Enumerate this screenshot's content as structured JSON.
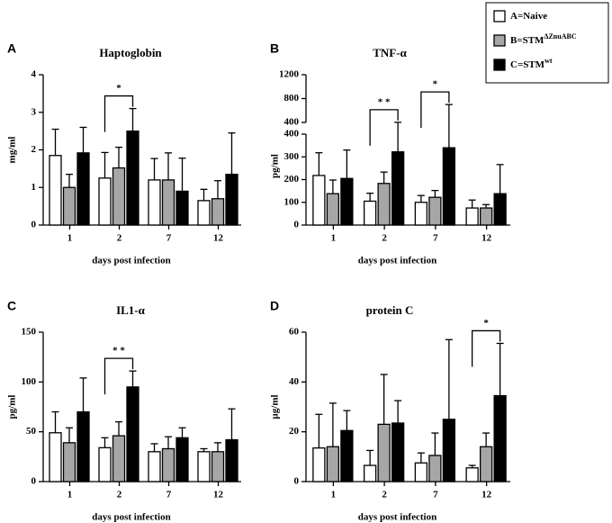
{
  "legend": [
    {
      "name": "A=Naive",
      "sup": "",
      "color": "#ffffff"
    },
    {
      "name": "B=STM",
      "sup": "ΔZnuABC",
      "color": "#a6a6a6"
    },
    {
      "name": "C=STM",
      "sup": "wt",
      "color": "#000000"
    }
  ],
  "chart_data": [
    {
      "type": "bar",
      "panel": "A",
      "title": "Haptoglobin",
      "ylabel": "mg/ml",
      "xlabel": "days post infection",
      "categories": [
        "1",
        "2",
        "7",
        "12"
      ],
      "series": [
        {
          "values": [
            1.85,
            1.25,
            1.2,
            0.65
          ],
          "errors": [
            0.7,
            0.68,
            0.57,
            0.3
          ]
        },
        {
          "values": [
            1.0,
            1.52,
            1.2,
            0.7
          ],
          "errors": [
            0.35,
            0.55,
            0.72,
            0.48
          ]
        },
        {
          "values": [
            1.92,
            2.5,
            0.9,
            1.35
          ],
          "errors": [
            0.68,
            0.6,
            0.88,
            1.1
          ]
        }
      ],
      "ylim": [
        0,
        4
      ],
      "yticks": [
        0,
        1,
        2,
        3,
        4
      ],
      "annotations": [
        {
          "text": "*",
          "category": "2"
        }
      ]
    },
    {
      "type": "bar",
      "panel": "B",
      "title": "TNF-α",
      "ylabel": "pg/ml",
      "xlabel": "days post infection",
      "categories": [
        "1",
        "2",
        "7",
        "12"
      ],
      "series": [
        {
          "values": [
            218,
            105,
            100,
            75
          ],
          "errors": [
            100,
            35,
            30,
            35
          ]
        },
        {
          "values": [
            138,
            183,
            122,
            75
          ],
          "errors": [
            60,
            50,
            30,
            15
          ]
        },
        {
          "values": [
            205,
            322,
            340,
            138
          ],
          "errors": [
            125,
            80,
            360,
            128
          ]
        }
      ],
      "ylim": [
        0,
        400
      ],
      "yticks": [
        0,
        100,
        200,
        300,
        400
      ],
      "ylim_upper": [
        400,
        1200
      ],
      "yticks_upper": [
        400,
        800,
        1200
      ],
      "annotations": [
        {
          "text": "* *",
          "category": "2"
        },
        {
          "text": "*",
          "category": "7"
        }
      ]
    },
    {
      "type": "bar",
      "panel": "C",
      "title": "IL1-α",
      "ylabel": "pg/ml",
      "xlabel": "days post infection",
      "categories": [
        "1",
        "2",
        "7",
        "12"
      ],
      "series": [
        {
          "values": [
            49,
            34,
            30,
            30
          ],
          "errors": [
            21,
            10,
            8,
            3
          ]
        },
        {
          "values": [
            39,
            46,
            33,
            30
          ],
          "errors": [
            15,
            14,
            12,
            9
          ]
        },
        {
          "values": [
            70,
            95,
            44,
            42
          ],
          "errors": [
            34,
            16,
            10,
            31
          ]
        }
      ],
      "ylim": [
        0,
        150
      ],
      "yticks": [
        0,
        50,
        100,
        150
      ],
      "annotations": [
        {
          "text": "* *",
          "category": "2"
        }
      ]
    },
    {
      "type": "bar",
      "panel": "D",
      "title": "protein C",
      "ylabel": "µg/ml",
      "xlabel": "days post infection",
      "categories": [
        "1",
        "2",
        "7",
        "12"
      ],
      "series": [
        {
          "values": [
            13.5,
            6.5,
            7.5,
            5.5
          ],
          "errors": [
            13.5,
            6,
            4,
            1
          ]
        },
        {
          "values": [
            14,
            23,
            10.5,
            14
          ],
          "errors": [
            17.5,
            20,
            9,
            5.5
          ]
        },
        {
          "values": [
            20.5,
            23.5,
            25,
            34.5
          ],
          "errors": [
            8,
            9,
            32,
            21
          ]
        }
      ],
      "ylim": [
        0,
        60
      ],
      "yticks": [
        0,
        20,
        40,
        60
      ],
      "annotations": [
        {
          "text": "*",
          "category": "12"
        }
      ]
    }
  ]
}
